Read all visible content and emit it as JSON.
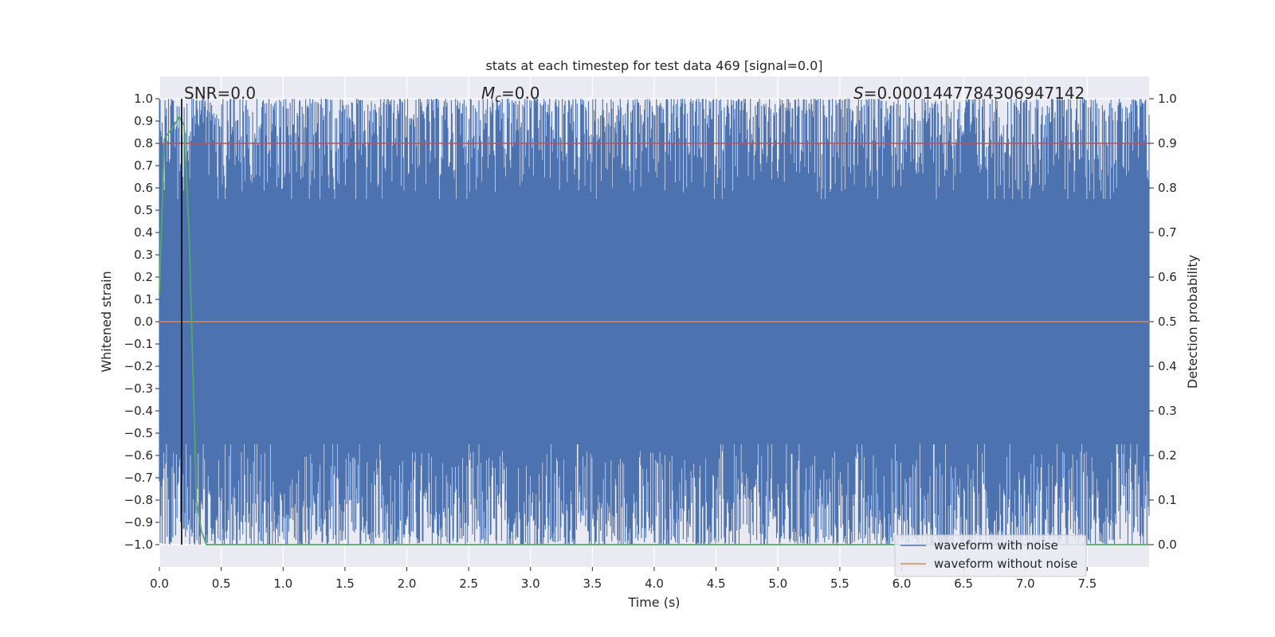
{
  "chart_data": {
    "type": "line",
    "title": "stats at each timestep for test data 469 [signal=0.0]",
    "xlabel": "Time (s)",
    "ylabel_left": "Whitened strain",
    "ylabel_right": "Detection probability",
    "xlim": [
      0.0,
      8.0
    ],
    "ylim_left": [
      -1.1,
      1.1
    ],
    "ylim_right": [
      -0.05,
      1.05
    ],
    "x_ticks": [
      "0.0",
      "0.5",
      "1.0",
      "1.5",
      "2.0",
      "2.5",
      "3.0",
      "3.5",
      "4.0",
      "4.5",
      "5.0",
      "5.5",
      "6.0",
      "6.5",
      "7.0",
      "7.5"
    ],
    "y_left_ticks": [
      "1.0",
      "0.9",
      "0.8",
      "0.7",
      "0.6",
      "0.5",
      "0.4",
      "0.3",
      "0.2",
      "0.1",
      "0.0",
      "−0.1",
      "−0.2",
      "−0.3",
      "−0.4",
      "−0.5",
      "−0.6",
      "−0.7",
      "−0.8",
      "−0.9",
      "−1.0"
    ],
    "y_right_ticks": [
      "1.0",
      "0.9",
      "0.8",
      "0.7",
      "0.6",
      "0.5",
      "0.4",
      "0.3",
      "0.2",
      "0.1",
      "0.0"
    ],
    "grid": true,
    "legend_position": "bottom-right",
    "annotations": {
      "snr": "SNR=0.0",
      "mc_symbol": "M",
      "mc_sub": "c",
      "mc_value": "=0.0",
      "s_symbol": "S",
      "s_value": "=0.0001447784306947142"
    },
    "vertical_marker_x": 0.18,
    "series": [
      {
        "name": "waveform with noise",
        "color": "#4c72b0",
        "axis": "left",
        "description_values": "dense noise filling band",
        "typical_top": [
          0.55,
          1.0
        ],
        "typical_bottom": [
          -1.0,
          -0.55
        ]
      },
      {
        "name": "waveform without noise",
        "color": "#dd8452",
        "axis": "left",
        "x": [
          0.0,
          8.0
        ],
        "y": [
          0.0,
          0.0
        ]
      },
      {
        "color": "#55a868",
        "axis": "right",
        "x": [
          0.0,
          0.04,
          0.12,
          0.16,
          0.2,
          0.24,
          0.3,
          0.34,
          0.38,
          0.5,
          1.0,
          2.0,
          4.0,
          6.0,
          8.0
        ],
        "y": [
          0.56,
          0.91,
          0.94,
          0.96,
          0.94,
          0.7,
          0.1,
          0.03,
          0.0,
          0.0,
          0.0,
          0.0,
          0.0,
          0.0,
          0.0
        ]
      },
      {
        "color": "#c44e52",
        "axis": "right",
        "x": [
          0.0,
          8.0
        ],
        "y": [
          0.9,
          0.9
        ]
      }
    ]
  }
}
